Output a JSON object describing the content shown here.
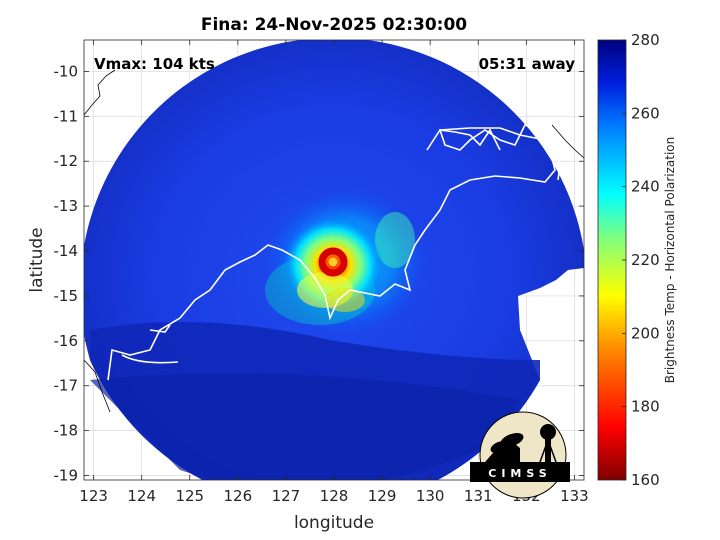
{
  "figure": {
    "title": "Fina: 24-Nov-2025 02:30:00",
    "vmax_label": "Vmax: 104 kts",
    "away_label": "05:31 away",
    "xlabel": "longitude",
    "ylabel": "latitude",
    "x_ticks": [
      "123",
      "124",
      "125",
      "126",
      "127",
      "128",
      "129",
      "130",
      "131",
      "132",
      "133"
    ],
    "y_ticks": [
      "-10",
      "-11",
      "-12",
      "-13",
      "-14",
      "-15",
      "-16",
      "-17",
      "-18",
      "-19"
    ],
    "colorbar_label": "Brightness Temp - Horizontal Polarization",
    "colorbar_ticks": [
      "280",
      "260",
      "240",
      "220",
      "200",
      "180",
      "160"
    ],
    "logo_text": "CIMSS"
  },
  "colors": {
    "background_deep_blue": "#0a1a8c",
    "swath_blue": "#1838e0",
    "warm_core": "#c80000",
    "coastline": "#ffffff"
  }
}
